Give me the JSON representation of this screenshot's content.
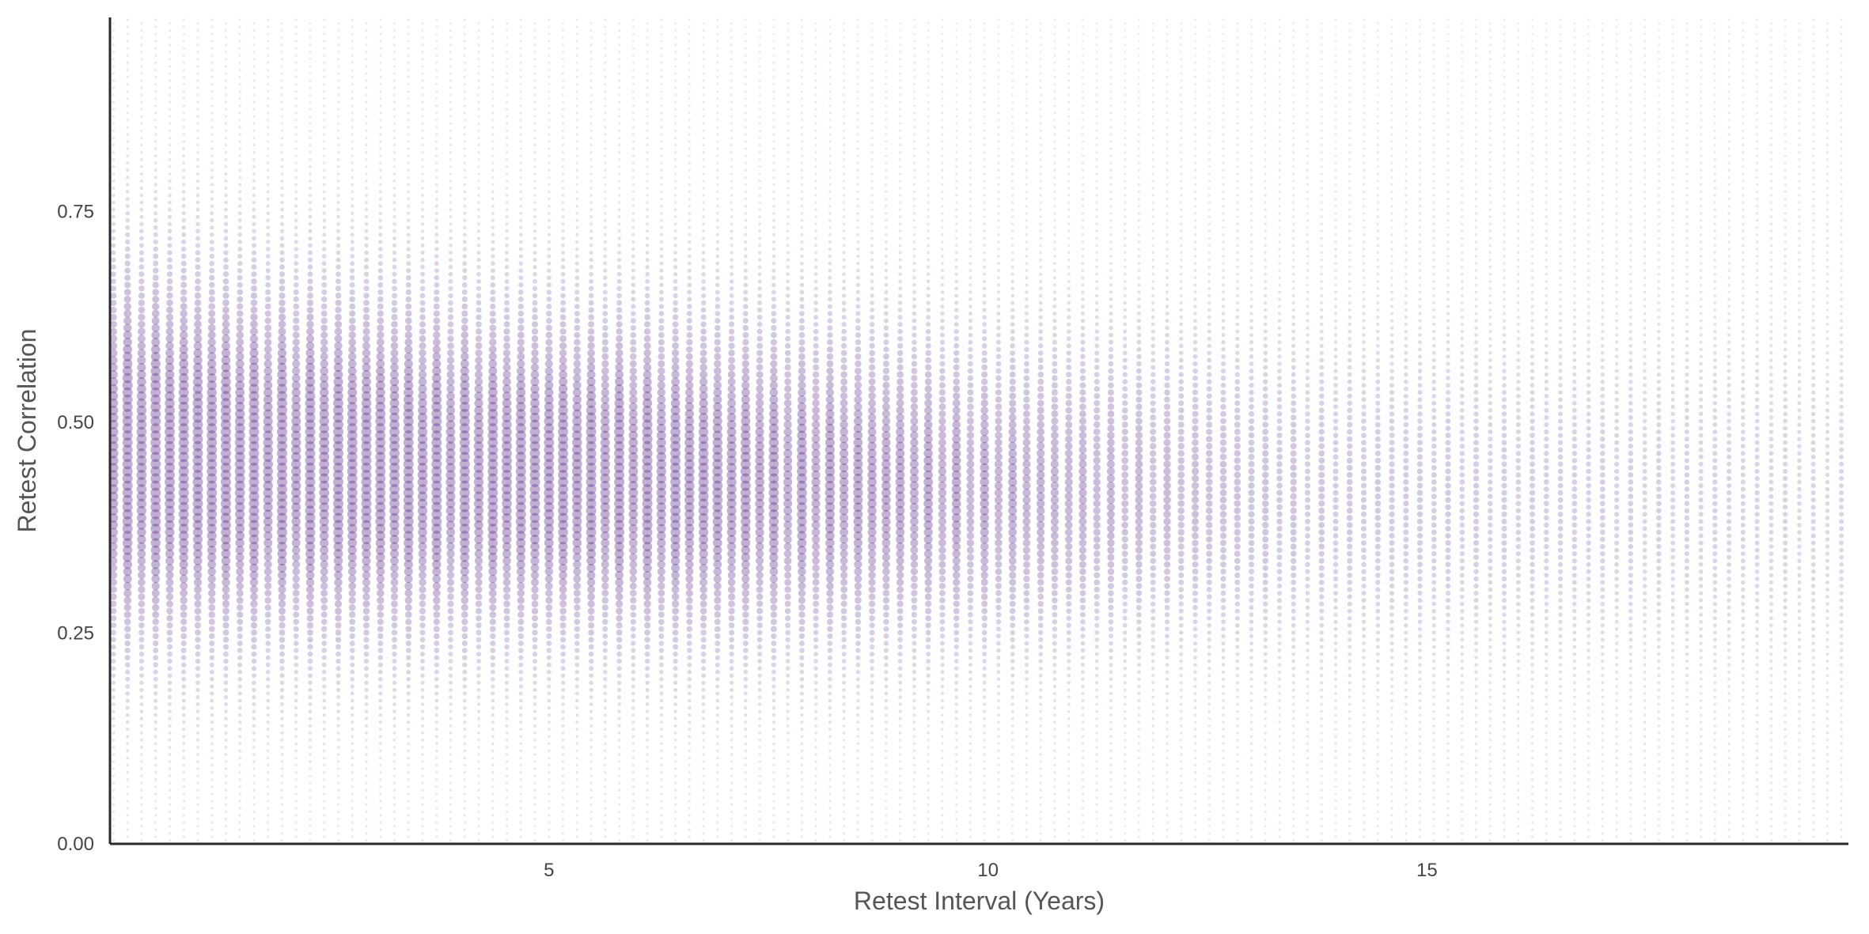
{
  "chart_data": {
    "type": "scatter",
    "title": "",
    "xlabel": "Retest Interval (Years)",
    "ylabel": "Retest Correlation",
    "xlim": [
      0,
      19.8
    ],
    "ylim": [
      0,
      0.98
    ],
    "x_ticks": [
      {
        "value": 5,
        "label": "5"
      },
      {
        "value": 10,
        "label": "10"
      },
      {
        "value": 15,
        "label": "15"
      }
    ],
    "y_ticks": [
      {
        "value": 0.0,
        "label": "0.00"
      },
      {
        "value": 0.25,
        "label": "0.25"
      },
      {
        "value": 0.5,
        "label": "0.50"
      },
      {
        "value": 0.75,
        "label": "0.75"
      }
    ],
    "grid": false,
    "legend": "none",
    "point_color": "#5b2d8e",
    "density_bands": [
      {
        "x": 0.5,
        "center": 0.46,
        "spread": 0.17
      },
      {
        "x": 2.5,
        "center": 0.45,
        "spread": 0.16
      },
      {
        "x": 5,
        "center": 0.44,
        "spread": 0.15
      },
      {
        "x": 7.5,
        "center": 0.43,
        "spread": 0.15
      },
      {
        "x": 10,
        "center": 0.42,
        "spread": 0.14
      },
      {
        "x": 12.5,
        "center": 0.42,
        "spread": 0.14
      },
      {
        "x": 15,
        "center": 0.41,
        "spread": 0.15
      },
      {
        "x": 17.5,
        "center": 0.41,
        "spread": 0.15
      },
      {
        "x": 19.8,
        "center": 0.41,
        "spread": 0.16
      }
    ],
    "density_intensity": [
      {
        "x": 0,
        "level": 1.0
      },
      {
        "x": 6,
        "level": 0.95
      },
      {
        "x": 10,
        "level": 0.75
      },
      {
        "x": 14,
        "level": 0.45
      },
      {
        "x": 19.8,
        "level": 0.3
      }
    ]
  }
}
